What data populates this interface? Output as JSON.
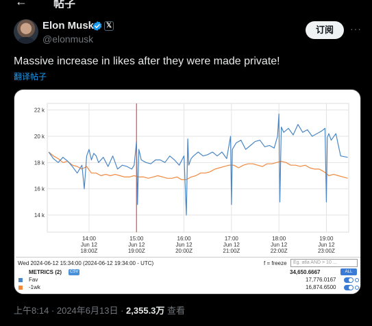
{
  "header": {
    "back_icon": "arrow-left-icon",
    "title": "帖子"
  },
  "author": {
    "name": "Elon Musk",
    "handle": "@elonmusk",
    "verified_color": "#1d9bf0",
    "affiliation_badge": "𝕏"
  },
  "actions": {
    "follow_label": "订阅",
    "more_label": "···"
  },
  "tweet": {
    "text": "Massive increase in likes after they were made private!",
    "translate_label": "翻译帖子"
  },
  "chart_data": {
    "type": "line",
    "title": "",
    "xlabel": "",
    "ylabel": "",
    "ylim": [
      12700,
      22500
    ],
    "y_ticks": [
      "22 k",
      "20 k",
      "18 k",
      "16 k",
      "14 k"
    ],
    "y_tick_values": [
      22000,
      20000,
      18000,
      16000,
      14000
    ],
    "x_ticks": [
      {
        "t": "14:00",
        "d": "Jun 12",
        "z": "18:00Z"
      },
      {
        "t": "15:00",
        "d": "Jun 12",
        "z": "19:00Z"
      },
      {
        "t": "16:00",
        "d": "Jun 12",
        "z": "20:00Z"
      },
      {
        "t": "17:00",
        "d": "Jun 12",
        "z": "21:00Z"
      },
      {
        "t": "18:00",
        "d": "Jun 12",
        "z": "22:00Z"
      },
      {
        "t": "19:00",
        "d": "Jun 12",
        "z": "23:00Z"
      }
    ],
    "x_tick_hours": [
      14,
      15,
      16,
      17,
      18,
      19
    ],
    "x_range_hours": [
      13.12,
      19.47
    ],
    "marker_hour": 15.0,
    "marker_color": "#d9534f",
    "series": [
      {
        "name": "Fav",
        "color": "#4a86c5",
        "x": [
          13.15,
          13.25,
          13.35,
          13.45,
          13.55,
          13.65,
          13.75,
          13.85,
          13.9,
          13.95,
          14.0,
          14.05,
          14.1,
          14.15,
          14.2,
          14.3,
          14.4,
          14.5,
          14.6,
          14.7,
          14.8,
          14.9,
          14.95,
          15.0,
          15.02,
          15.05,
          15.1,
          15.2,
          15.3,
          15.4,
          15.5,
          15.6,
          15.7,
          15.8,
          15.9,
          16.0,
          16.05,
          16.08,
          16.1,
          16.15,
          16.2,
          16.3,
          16.4,
          16.5,
          16.6,
          16.7,
          16.8,
          16.9,
          16.98,
          17.0,
          17.02,
          17.1,
          17.2,
          17.3,
          17.4,
          17.5,
          17.6,
          17.7,
          17.8,
          17.9,
          17.97,
          18.0,
          18.02,
          18.05,
          18.1,
          18.2,
          18.3,
          18.4,
          18.5,
          18.6,
          18.7,
          18.8,
          18.9,
          18.97,
          19.0,
          19.02,
          19.05,
          19.1,
          19.2,
          19.3,
          19.45
        ],
        "values": [
          18800,
          18300,
          18000,
          18400,
          18100,
          17700,
          17200,
          17800,
          16000,
          18500,
          19000,
          18200,
          18700,
          18500,
          18000,
          18400,
          17700,
          18500,
          17500,
          17800,
          17700,
          17500,
          17800,
          19600,
          14800,
          19000,
          18200,
          18000,
          17900,
          18200,
          18200,
          18000,
          18500,
          18200,
          17800,
          18500,
          14000,
          19800,
          17800,
          18300,
          18500,
          18800,
          18500,
          18600,
          18800,
          18500,
          18800,
          18300,
          20000,
          14800,
          19000,
          19500,
          19700,
          19000,
          19300,
          19600,
          19700,
          19200,
          19300,
          19100,
          20000,
          21700,
          15000,
          20700,
          20300,
          20600,
          20100,
          20900,
          20300,
          20500,
          20000,
          20200,
          20400,
          20600,
          15000,
          19900,
          20200,
          19700,
          20200,
          18500,
          18400
        ]
      },
      {
        "name": "-1wk",
        "color": "#f0883e",
        "x": [
          13.15,
          13.25,
          13.35,
          13.45,
          13.55,
          13.65,
          13.75,
          13.85,
          13.95,
          14.05,
          14.15,
          14.25,
          14.35,
          14.45,
          14.55,
          14.65,
          14.75,
          14.85,
          14.95,
          15.05,
          15.15,
          15.25,
          15.35,
          15.45,
          15.55,
          15.65,
          15.75,
          15.85,
          15.95,
          16.05,
          16.15,
          16.25,
          16.35,
          16.45,
          16.55,
          16.65,
          16.75,
          16.85,
          16.95,
          17.05,
          17.15,
          17.25,
          17.35,
          17.45,
          17.55,
          17.65,
          17.75,
          17.85,
          17.95,
          18.05,
          18.15,
          18.25,
          18.35,
          18.45,
          18.55,
          18.65,
          18.75,
          18.85,
          18.95,
          19.05,
          19.15,
          19.25,
          19.35,
          19.45
        ],
        "values": [
          18800,
          18500,
          18300,
          18000,
          18100,
          17800,
          17700,
          17500,
          17700,
          17200,
          17200,
          17000,
          17100,
          17000,
          17100,
          17000,
          16900,
          16900,
          17000,
          16900,
          16900,
          16800,
          16900,
          17000,
          16900,
          16800,
          16800,
          16900,
          16700,
          16700,
          16900,
          17000,
          17200,
          17200,
          17300,
          17500,
          17600,
          17700,
          17800,
          17800,
          17600,
          17800,
          17900,
          17900,
          17800,
          17700,
          17900,
          17900,
          18000,
          18100,
          18000,
          17800,
          17800,
          17700,
          17800,
          17600,
          17500,
          17500,
          17300,
          17000,
          17100,
          17000,
          16900,
          16800
        ]
      }
    ]
  },
  "chart_panel": {
    "date_label": "Wed 2024-06-12 15:34:00 (2024-06-12 19:34:00 - UTC)",
    "freeze_label": "f = freeze",
    "query_placeholder": "Eg. atla AND > 10 ...",
    "metrics_label": "METRICS (2)",
    "csv_label": "CSV",
    "total_value": "34,650.6667",
    "all_label": "ALL",
    "rows": [
      {
        "name": "Fav",
        "value": "17,776.0167",
        "color": "#4a86c5"
      },
      {
        "name": "-1wk",
        "value": "16,874.6500",
        "color": "#f0883e"
      }
    ]
  },
  "meta": {
    "time": "上午8:14 · 2024年6月13日 · ",
    "views": "2,355.3万",
    "views_suffix": " 查看"
  }
}
